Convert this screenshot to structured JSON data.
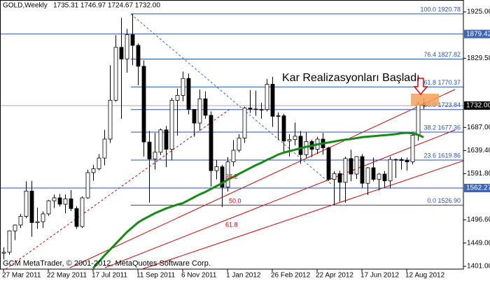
{
  "chart_data": {
    "type": "candlestick",
    "title": "GOLD,Weekly",
    "header": "1735.31 1746.97 1724.67 1732.00",
    "annotation": "Kar Realizasyonları Başladı",
    "copyright": "GCM MetaTrader, © 2001-2012, MetaQuotes Software Corp.",
    "categories": [
      "27 Mar 2011",
      null,
      null,
      null,
      null,
      null,
      null,
      null,
      "22 May 2011",
      null,
      null,
      null,
      null,
      null,
      null,
      null,
      "17 Jul 2011",
      null,
      null,
      null,
      null,
      null,
      null,
      null,
      "11 Sep 2011",
      null,
      null,
      null,
      null,
      null,
      null,
      null,
      "6 Nov 2011",
      null,
      null,
      null,
      null,
      null,
      null,
      null,
      "1 Jan 2012",
      null,
      null,
      null,
      null,
      null,
      null,
      null,
      "26 Feb 2012",
      null,
      null,
      null,
      null,
      null,
      null,
      null,
      "22 Apr 2012",
      null,
      null,
      null,
      null,
      null,
      null,
      null,
      "17 Jun 2012",
      null,
      null,
      null,
      null,
      null,
      null,
      null,
      "12 Aug 2012",
      null,
      null,
      null
    ],
    "open": [
      1428,
      1430,
      1474,
      1486,
      1504,
      1556,
      1491,
      1493,
      1509,
      1536,
      1542,
      1529,
      1540,
      1520,
      1483,
      1542,
      1594,
      1602,
      1624,
      1663,
      1743,
      1852,
      1828,
      1878,
      1856,
      1813,
      1657,
      1622,
      1636,
      1682,
      1642,
      1743,
      1753,
      1788,
      1724,
      1696,
      1746,
      1712,
      1598,
      1606,
      1564,
      1616,
      1640,
      1665,
      1727,
      1725,
      1724,
      1724,
      1776,
      1710,
      1711,
      1659,
      1662,
      1669,
      1631,
      1658,
      1642,
      1663,
      1645,
      1580,
      1592,
      1574,
      1623,
      1591,
      1627,
      1572,
      1604,
      1580,
      1591,
      1577,
      1621,
      1621,
      1619,
      1616,
      1671,
      1735.31
    ],
    "high": [
      1440,
      1475,
      1487,
      1509,
      1576,
      1577,
      1522,
      1514,
      1538,
      1549,
      1550,
      1549,
      1558,
      1525,
      1545,
      1600,
      1610,
      1632,
      1682,
      1815,
      1877,
      1913,
      1890,
      1920.78,
      1860,
      1825,
      1680,
      1676,
      1685,
      1690,
      1748,
      1767,
      1802,
      1798,
      1725,
      1765,
      1761,
      1720,
      1620,
      1610,
      1626,
      1661,
      1673,
      1730,
      1764,
      1763,
      1738,
      1787,
      1791,
      1718,
      1715,
      1673,
      1697,
      1680,
      1677,
      1662,
      1668,
      1676,
      1647,
      1597,
      1598,
      1627,
      1641,
      1628,
      1632,
      1605,
      1625,
      1593,
      1597,
      1627,
      1623,
      1625,
      1625,
      1674,
      1741,
      1746.97
    ],
    "low": [
      1415,
      1425,
      1455,
      1480,
      1500,
      1462,
      1478,
      1480,
      1505,
      1521,
      1524,
      1510,
      1515,
      1478,
      1480,
      1540,
      1577,
      1599,
      1609,
      1655,
      1740,
      1705,
      1800,
      1815,
      1774,
      1627,
      1532,
      1600,
      1630,
      1605,
      1620,
      1670,
      1741,
      1714,
      1668,
      1680,
      1705,
      1565,
      1580,
      1523,
      1555,
      1607,
      1636,
      1655,
      1717,
      1711,
      1705,
      1720,
      1688,
      1661,
      1635,
      1627,
      1650,
      1612,
      1624,
      1626,
      1632,
      1631,
      1577,
      1526.9,
      1534,
      1532,
      1576,
      1581,
      1563,
      1548,
      1576,
      1557,
      1564,
      1562,
      1583,
      1600,
      1598,
      1611,
      1660,
      1724.67
    ],
    "close": [
      1430,
      1474,
      1486,
      1504,
      1556,
      1491,
      1493,
      1509,
      1536,
      1542,
      1529,
      1540,
      1520,
      1483,
      1542,
      1594,
      1602,
      1624,
      1663,
      1743,
      1852,
      1828,
      1878,
      1856,
      1813,
      1657,
      1622,
      1636,
      1682,
      1642,
      1743,
      1753,
      1788,
      1724,
      1696,
      1746,
      1712,
      1598,
      1606,
      1564,
      1616,
      1640,
      1665,
      1727,
      1725,
      1724,
      1724,
      1776,
      1710,
      1711,
      1659,
      1662,
      1669,
      1631,
      1658,
      1642,
      1663,
      1645,
      1580,
      1592,
      1574,
      1623,
      1591,
      1627,
      1572,
      1604,
      1580,
      1591,
      1577,
      1621,
      1621,
      1619,
      1616,
      1671,
      1735,
      1732
    ],
    "ma": {
      "color": "#168a16",
      "values": [
        null,
        null,
        null,
        null,
        null,
        null,
        null,
        null,
        null,
        null,
        null,
        null,
        null,
        null,
        null,
        null,
        1397,
        1410,
        1423,
        1435,
        1447,
        1459,
        1471,
        1481,
        1491,
        1498,
        1504,
        1510,
        1515,
        1520,
        1524,
        1528,
        1531,
        1537,
        1543,
        1549,
        1554,
        1560,
        1566,
        1572,
        1579,
        1585,
        1591,
        1597,
        1603,
        1609,
        1614,
        1620,
        1625,
        1631,
        1635,
        1638,
        1641,
        1644,
        1647,
        1649,
        1652,
        1654,
        1656,
        1658,
        1660,
        1662,
        1663,
        1665,
        1667,
        1668,
        1669,
        1670,
        1671,
        1672,
        1673,
        1675,
        1676,
        1675,
        1672,
        1667
      ]
    },
    "ylim": [
      1401,
      1925
    ],
    "yticks": [
      {
        "value": 1925,
        "label": "1925.00"
      },
      {
        "value": 1829.58,
        "label": "1829.58"
      },
      {
        "value": 1687,
        "label": "1687.00"
      },
      {
        "value": 1639.4,
        "label": "1639.40"
      },
      {
        "value": 1591.8,
        "label": "1591.80"
      },
      {
        "value": 1496.6,
        "label": "1496.60"
      },
      {
        "value": 1449,
        "label": "1449.00"
      },
      {
        "value": 1401,
        "label": "1401.00"
      }
    ],
    "hlines": [
      {
        "value": 1879.42,
        "label": "1879.42"
      },
      {
        "value": 1562.27,
        "label": "1562.27"
      }
    ],
    "price": {
      "value": 1732,
      "label": "1732.00"
    },
    "fib_levels": [
      {
        "value": 1920.78,
        "label": "100.0 1920.78"
      },
      {
        "value": 1827.82,
        "label": "76.4 1827.82"
      },
      {
        "value": 1770.37,
        "label": "61.8 1770.37"
      },
      {
        "value": 1723.84,
        "label": "50.0 1723.84"
      },
      {
        "value": 1677.36,
        "label": "38.2 1677.36"
      },
      {
        "value": 1619.86,
        "label": "23.6 1619.86"
      },
      {
        "value": 1526.9,
        "label": "0.0 1526.90"
      }
    ],
    "fan_labels": [
      "38.2",
      "50.0",
      "61.8"
    ]
  }
}
